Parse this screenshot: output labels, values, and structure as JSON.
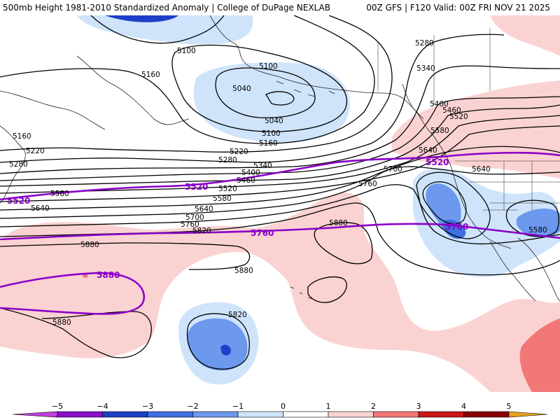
{
  "header": {
    "title_left": "500mb Height 1981-2010 Standardized Anomaly | College of DuPage NEXLAB",
    "title_right": "00Z GFS | F120 Valid: 00Z FRI NOV 21 2025"
  },
  "colors": {
    "neg_light": "#cfe4fb",
    "neg_mid": "#6c98ee",
    "neg_dark": "#1e3fc8",
    "pos_light": "#fbd2d2",
    "pos_mid": "#f27777",
    "purple": "#8a00c8",
    "coast": "#222222"
  },
  "contour_labels": {
    "h5100a": "5100",
    "h5160a": "5160",
    "h5100b": "5100",
    "h5040a": "5040",
    "h5040b": "5040",
    "h5100c": "5100",
    "h5160b": "5160",
    "h5220a": "5220",
    "h5280a": "5280",
    "h5340a": "5340",
    "h5400a": "5400",
    "h5460a": "5460",
    "h5520a": "5520",
    "h5580a": "5580",
    "h5640a": "5640",
    "h5700a": "5700",
    "h5760a": "5760",
    "h5820a": "5820",
    "h5880a": "5880",
    "h5880b": "5880",
    "h5880c": "5880",
    "h5820b": "5820",
    "h5760b": "5760",
    "h5700b": "5700",
    "h5640b": "5640",
    "h5580b": "5580",
    "h5520b": "5520",
    "h5460b": "5460",
    "h5400b": "5400",
    "h5340b": "5340",
    "h5280b": "5280",
    "h5580c": "5580",
    "h5640c": "5640",
    "h5160c": "5160",
    "h5220b": "5220",
    "h5280c": "5280",
    "h5580d": "5580",
    "h5640d": "5640",
    "h5880d": "5880"
  },
  "climo_labels": {
    "c5520a": "5520",
    "c5520b": "5520",
    "c5520c": "5520",
    "c5760a": "5760",
    "c5760b": "5760",
    "c5880a": "5880"
  },
  "colorbar": {
    "ticks": [
      "−5",
      "−4",
      "−3",
      "−2",
      "−1",
      "0",
      "1",
      "2",
      "3",
      "4",
      "5"
    ],
    "colors": [
      "#c040e0",
      "#8a10c8",
      "#1e3fc8",
      "#3f6fe0",
      "#6c98ee",
      "#cfe4fb",
      "#ffffff",
      "#fbd2d2",
      "#f27777",
      "#c81818",
      "#8a0000",
      "#e8a020"
    ]
  }
}
